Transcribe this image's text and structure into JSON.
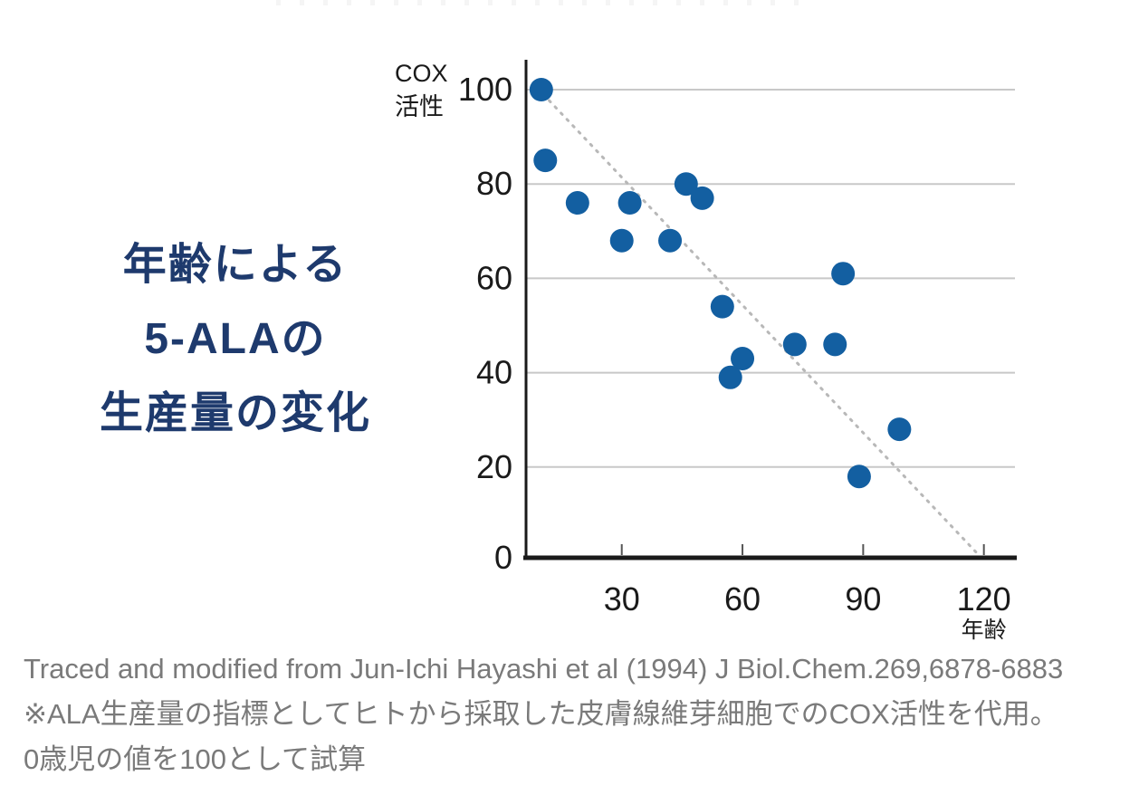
{
  "title": {
    "lines": [
      "年齢による",
      "5-ALAの",
      "生産量の変化"
    ],
    "color": "#1e3a6d"
  },
  "chart_data": {
    "type": "scatter",
    "title": "年齢による5-ALAの生産量の変化",
    "xlabel": "年齢",
    "ylabel": "COX活性",
    "ylabel_lines": [
      "COX",
      "活性"
    ],
    "xlim": [
      0,
      130
    ],
    "ylim": [
      0,
      105
    ],
    "x_ticks": [
      30,
      60,
      90,
      120
    ],
    "y_ticks": [
      0,
      20,
      40,
      60,
      80,
      100
    ],
    "grid": "horizontal",
    "legend": "none",
    "point_color": "#135fa1",
    "point_radius": 13,
    "points": [
      {
        "age": 10,
        "cox": 100
      },
      {
        "age": 11,
        "cox": 85
      },
      {
        "age": 19,
        "cox": 76
      },
      {
        "age": 30,
        "cox": 68
      },
      {
        "age": 32,
        "cox": 76
      },
      {
        "age": 42,
        "cox": 68
      },
      {
        "age": 46,
        "cox": 80
      },
      {
        "age": 50,
        "cox": 77
      },
      {
        "age": 55,
        "cox": 54
      },
      {
        "age": 57,
        "cox": 39
      },
      {
        "age": 60,
        "cox": 43
      },
      {
        "age": 73,
        "cox": 46
      },
      {
        "age": 83,
        "cox": 46
      },
      {
        "age": 85,
        "cox": 61
      },
      {
        "age": 89,
        "cox": 18
      },
      {
        "age": 99,
        "cox": 28
      }
    ],
    "trend_line": {
      "style": "dotted",
      "color": "#b8b8b8",
      "from": {
        "age": 10.5,
        "cox": 99
      },
      "to": {
        "age": 118,
        "cox": 2
      }
    }
  },
  "caption": {
    "color": "#7a7a7a",
    "lines": [
      "Traced and modified from Jun-Ichi Hayashi et al (1994) J Biol.Chem.269,6878-6883",
      "※ALA生産量の指標としてヒトから採取した皮膚線維芽細胞でのCOX活性を代用。",
      "0歳児の値を100として試算"
    ]
  }
}
